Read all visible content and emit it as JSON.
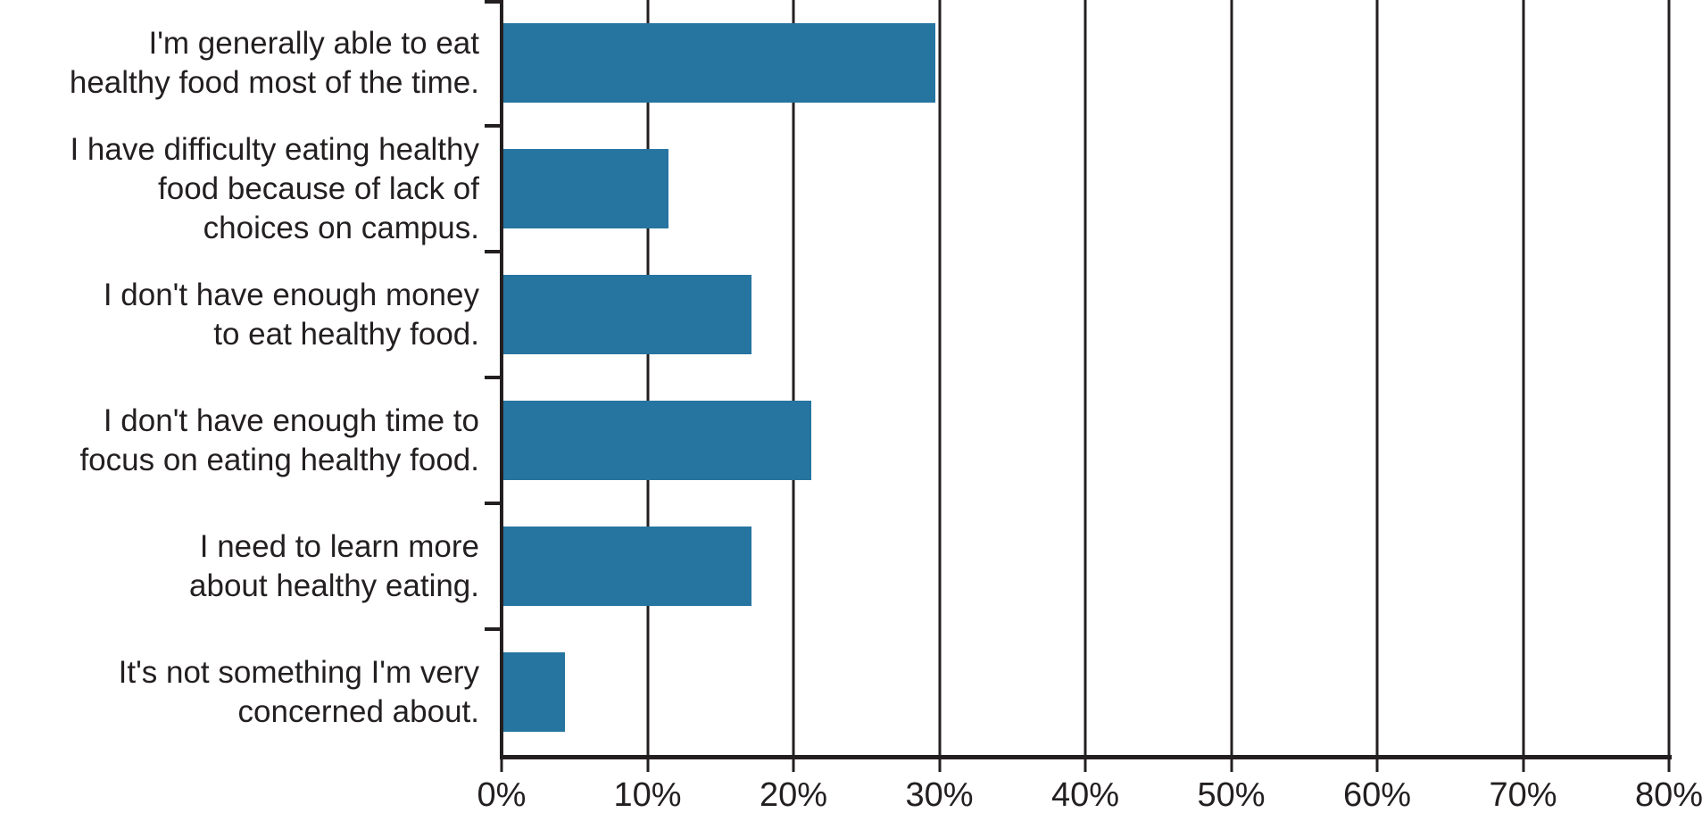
{
  "chart_data": {
    "type": "bar",
    "orientation": "horizontal",
    "title": "",
    "xlabel": "",
    "ylabel": "",
    "grid": true,
    "legend": false,
    "categories": [
      "I'm generally able to eat\nhealthy food most of the time.",
      "I have difficulty eating healthy\nfood because of lack of\nchoices on campus.",
      "I don't have enough money\nto eat healthy food.",
      "I don't have enough time to\nfocus on eating healthy food.",
      "I need to learn more\nabout healthy eating.",
      "It's not something I'm very\nconcerned about."
    ],
    "values": [
      29.6,
      11.3,
      17.0,
      21.1,
      17.0,
      4.2
    ],
    "unit": "%",
    "x_axis": {
      "min": 0,
      "max": 80,
      "tick_step": 10,
      "tick_labels": [
        "0%",
        "10%",
        "20%",
        "30%",
        "40%",
        "50%",
        "60%",
        "70%",
        "80%"
      ]
    },
    "colors": {
      "bar": "#2674a0",
      "axis": "#231f20",
      "grid": "#231f20",
      "text": "#231f20",
      "background": "#ffffff"
    }
  }
}
